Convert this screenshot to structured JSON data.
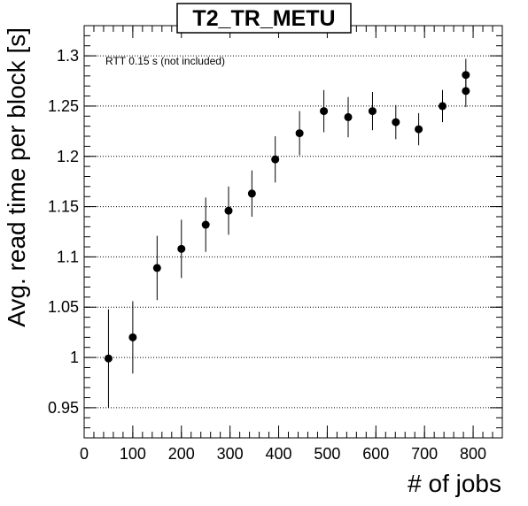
{
  "chart_data": {
    "type": "scatter",
    "title": "T2_TR_METU",
    "xlabel": "# of jobs",
    "ylabel": "Avg. read time per block [s]",
    "annotation": "RTT 0.15 s (not included)",
    "xlim": [
      0,
      860
    ],
    "ylim": [
      0.92,
      1.33
    ],
    "x_ticks": [
      0,
      100,
      200,
      300,
      400,
      500,
      600,
      700,
      800
    ],
    "x_tick_labels": [
      "0",
      "100",
      "200",
      "300",
      "400",
      "500",
      "600",
      "700",
      "800"
    ],
    "y_ticks": [
      0.95,
      1.0,
      1.05,
      1.1,
      1.15,
      1.2,
      1.25,
      1.3
    ],
    "y_tick_labels": [
      "0.95",
      "1",
      "1.05",
      "1.1",
      "1.15",
      "1.2",
      "1.25",
      "1.3"
    ],
    "grid": "horizontal dotted",
    "series": [
      {
        "points": [
          {
            "x": 50,
            "y": 0.999,
            "err": 0.049
          },
          {
            "x": 100,
            "y": 1.02,
            "err": 0.036
          },
          {
            "x": 150,
            "y": 1.089,
            "err": 0.032
          },
          {
            "x": 200,
            "y": 1.108,
            "err": 0.029
          },
          {
            "x": 250,
            "y": 1.132,
            "err": 0.027
          },
          {
            "x": 297,
            "y": 1.146,
            "err": 0.024
          },
          {
            "x": 345,
            "y": 1.163,
            "err": 0.023
          },
          {
            "x": 393,
            "y": 1.197,
            "err": 0.023
          },
          {
            "x": 443,
            "y": 1.223,
            "err": 0.022
          },
          {
            "x": 493,
            "y": 1.245,
            "err": 0.021
          },
          {
            "x": 543,
            "y": 1.239,
            "err": 0.02
          },
          {
            "x": 593,
            "y": 1.245,
            "err": 0.019
          },
          {
            "x": 641,
            "y": 1.234,
            "err": 0.017
          },
          {
            "x": 688,
            "y": 1.227,
            "err": 0.016
          },
          {
            "x": 737,
            "y": 1.25,
            "err": 0.016
          },
          {
            "x": 785,
            "y": 1.265,
            "err": 0.016
          },
          {
            "x": 785,
            "y": 1.281,
            "err": 0.016
          }
        ]
      }
    ]
  }
}
